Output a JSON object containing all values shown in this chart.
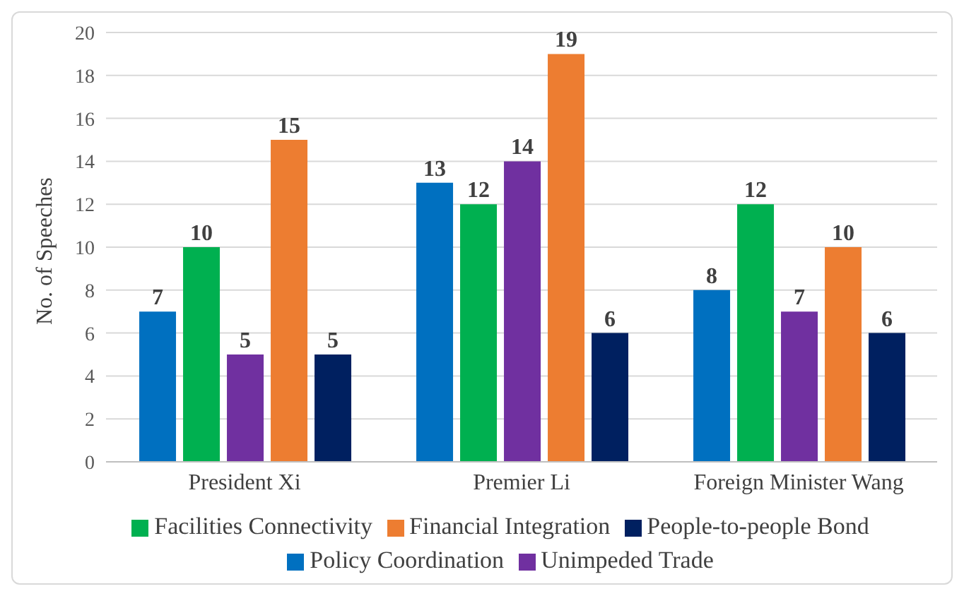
{
  "chart_data": {
    "type": "bar",
    "ylabel": "No. of Speeches",
    "categories": [
      "President Xi",
      "Premier Li",
      "Foreign Minister Wang"
    ],
    "series": [
      {
        "name": "Policy Coordination",
        "color": "#0070c0",
        "values": [
          7,
          13,
          8
        ]
      },
      {
        "name": "Facilities Connectivity",
        "color": "#00b050",
        "values": [
          10,
          12,
          12
        ]
      },
      {
        "name": "Unimpeded Trade",
        "color": "#7030a0",
        "values": [
          5,
          14,
          7
        ]
      },
      {
        "name": "Financial Integration",
        "color": "#ed7d31",
        "values": [
          15,
          19,
          10
        ]
      },
      {
        "name": "People-to-people Bond",
        "color": "#002060",
        "values": [
          5,
          6,
          6
        ]
      }
    ],
    "ylim": [
      0,
      20
    ],
    "yticks": [
      0,
      2,
      4,
      6,
      8,
      10,
      12,
      14,
      16,
      18,
      20
    ],
    "grid": "y",
    "legend": "bottom",
    "data_labels": true
  }
}
